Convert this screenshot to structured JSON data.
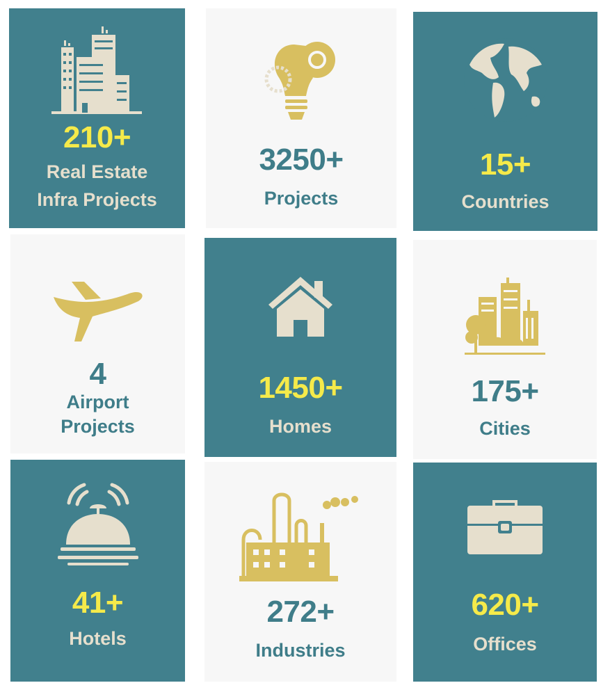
{
  "colors": {
    "teal": "#41808d",
    "light": "#f7f7f7",
    "number_on_teal": "#f5ea4a",
    "text_on_teal": "#e6dfcd",
    "text_on_light": "#3f7d89",
    "icon_gold": "#d8bf60",
    "icon_cream": "#e6dfcd"
  },
  "stats": [
    {
      "icon": "buildings-icon",
      "number": "210+",
      "label": [
        "Real Estate",
        "Infra Projects"
      ]
    },
    {
      "icon": "lightbulb-gears-icon",
      "number": "3250+",
      "label": [
        "Projects"
      ]
    },
    {
      "icon": "globe-icon",
      "number": "15+",
      "label": [
        "Countries"
      ]
    },
    {
      "icon": "airplane-icon",
      "number": "4",
      "label": [
        "Airport",
        "Projects"
      ]
    },
    {
      "icon": "house-icon",
      "number": "1450+",
      "label": [
        "Homes"
      ]
    },
    {
      "icon": "city-trees-icon",
      "number": "175+",
      "label": [
        "Cities"
      ]
    },
    {
      "icon": "service-bell-icon",
      "number": "41+",
      "label": [
        "Hotels"
      ]
    },
    {
      "icon": "factory-icon",
      "number": "272+",
      "label": [
        "Industries"
      ]
    },
    {
      "icon": "briefcase-icon",
      "number": "620+",
      "label": [
        "Offices"
      ]
    }
  ]
}
